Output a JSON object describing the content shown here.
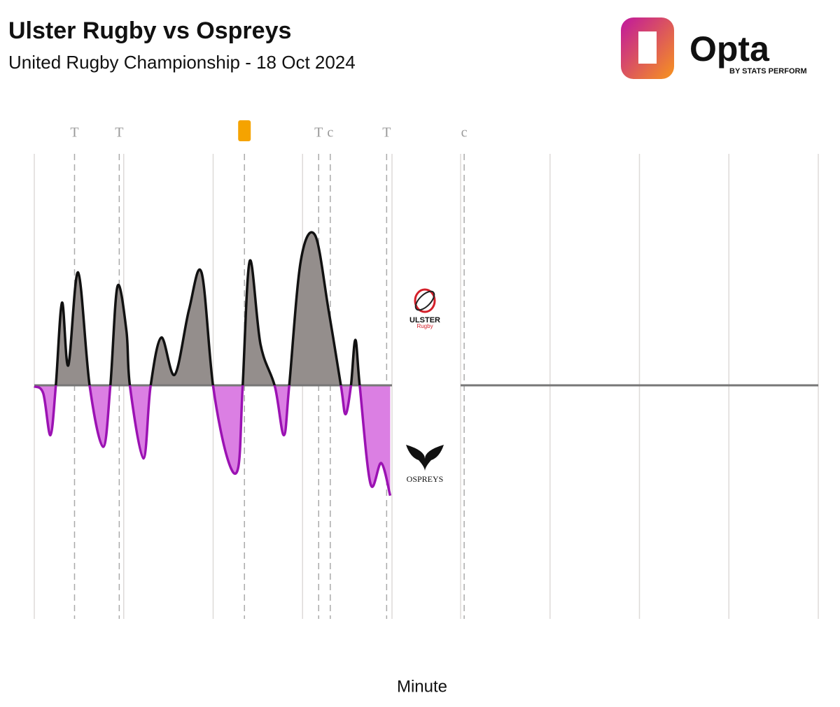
{
  "chart_data": {
    "type": "area",
    "title": "Ulster Rugby vs Ospreys",
    "subtitle": "United Rugby Championship - 18 Oct 2024",
    "x_label": "Minute",
    "x": [
      0,
      1,
      1.8,
      2.4,
      3.1,
      3.8,
      4.9,
      6.2,
      7.7,
      8.5,
      9.3,
      10.3,
      10.7,
      12.2,
      13,
      14.2,
      15.7,
      17.3,
      18.7,
      20,
      21.6,
      22.8,
      23.3,
      24.1,
      25.3,
      26.9,
      27.9,
      28.5,
      29.8,
      31.4,
      32.9,
      34.3,
      34.8,
      35.4,
      35.9,
      36.4,
      37.6,
      38.8,
      39.8
    ],
    "values": [
      0,
      -3,
      -21,
      0,
      36,
      9,
      49,
      0,
      -26,
      0,
      43,
      24,
      0,
      -31,
      0,
      21,
      5,
      33,
      49,
      0,
      -31,
      -35,
      0,
      54,
      18,
      0,
      -21,
      0,
      54,
      65,
      33,
      0,
      -12,
      0,
      20,
      0,
      -42,
      -33,
      -47
    ],
    "positive_color": "#948e8c",
    "negative_color": "#db7fe3",
    "positive_line": "#111111",
    "negative_line": "#9b12b3",
    "xlim": [
      0,
      80
    ],
    "xticks": [
      0,
      10,
      20,
      30,
      40,
      50,
      60,
      70,
      80
    ],
    "ylim": [
      -100,
      100
    ],
    "grid": true,
    "events": [
      {
        "minute": 4.5,
        "label": "T"
      },
      {
        "minute": 9.5,
        "label": "T"
      },
      {
        "minute": 23.5,
        "card": "yellow",
        "color": "#f5a300"
      },
      {
        "minute": 31.8,
        "label": "T"
      },
      {
        "minute": 33.1,
        "label": "c"
      },
      {
        "minute": 39.4,
        "label": "T"
      },
      {
        "minute": 40.4,
        "label": "c"
      }
    ],
    "teams": {
      "home": "ULSTER",
      "home_sub": "Rugby",
      "away": "OSPREYS"
    },
    "logo": {
      "name": "Opta",
      "byline": "BY STATS PERFORM"
    }
  }
}
